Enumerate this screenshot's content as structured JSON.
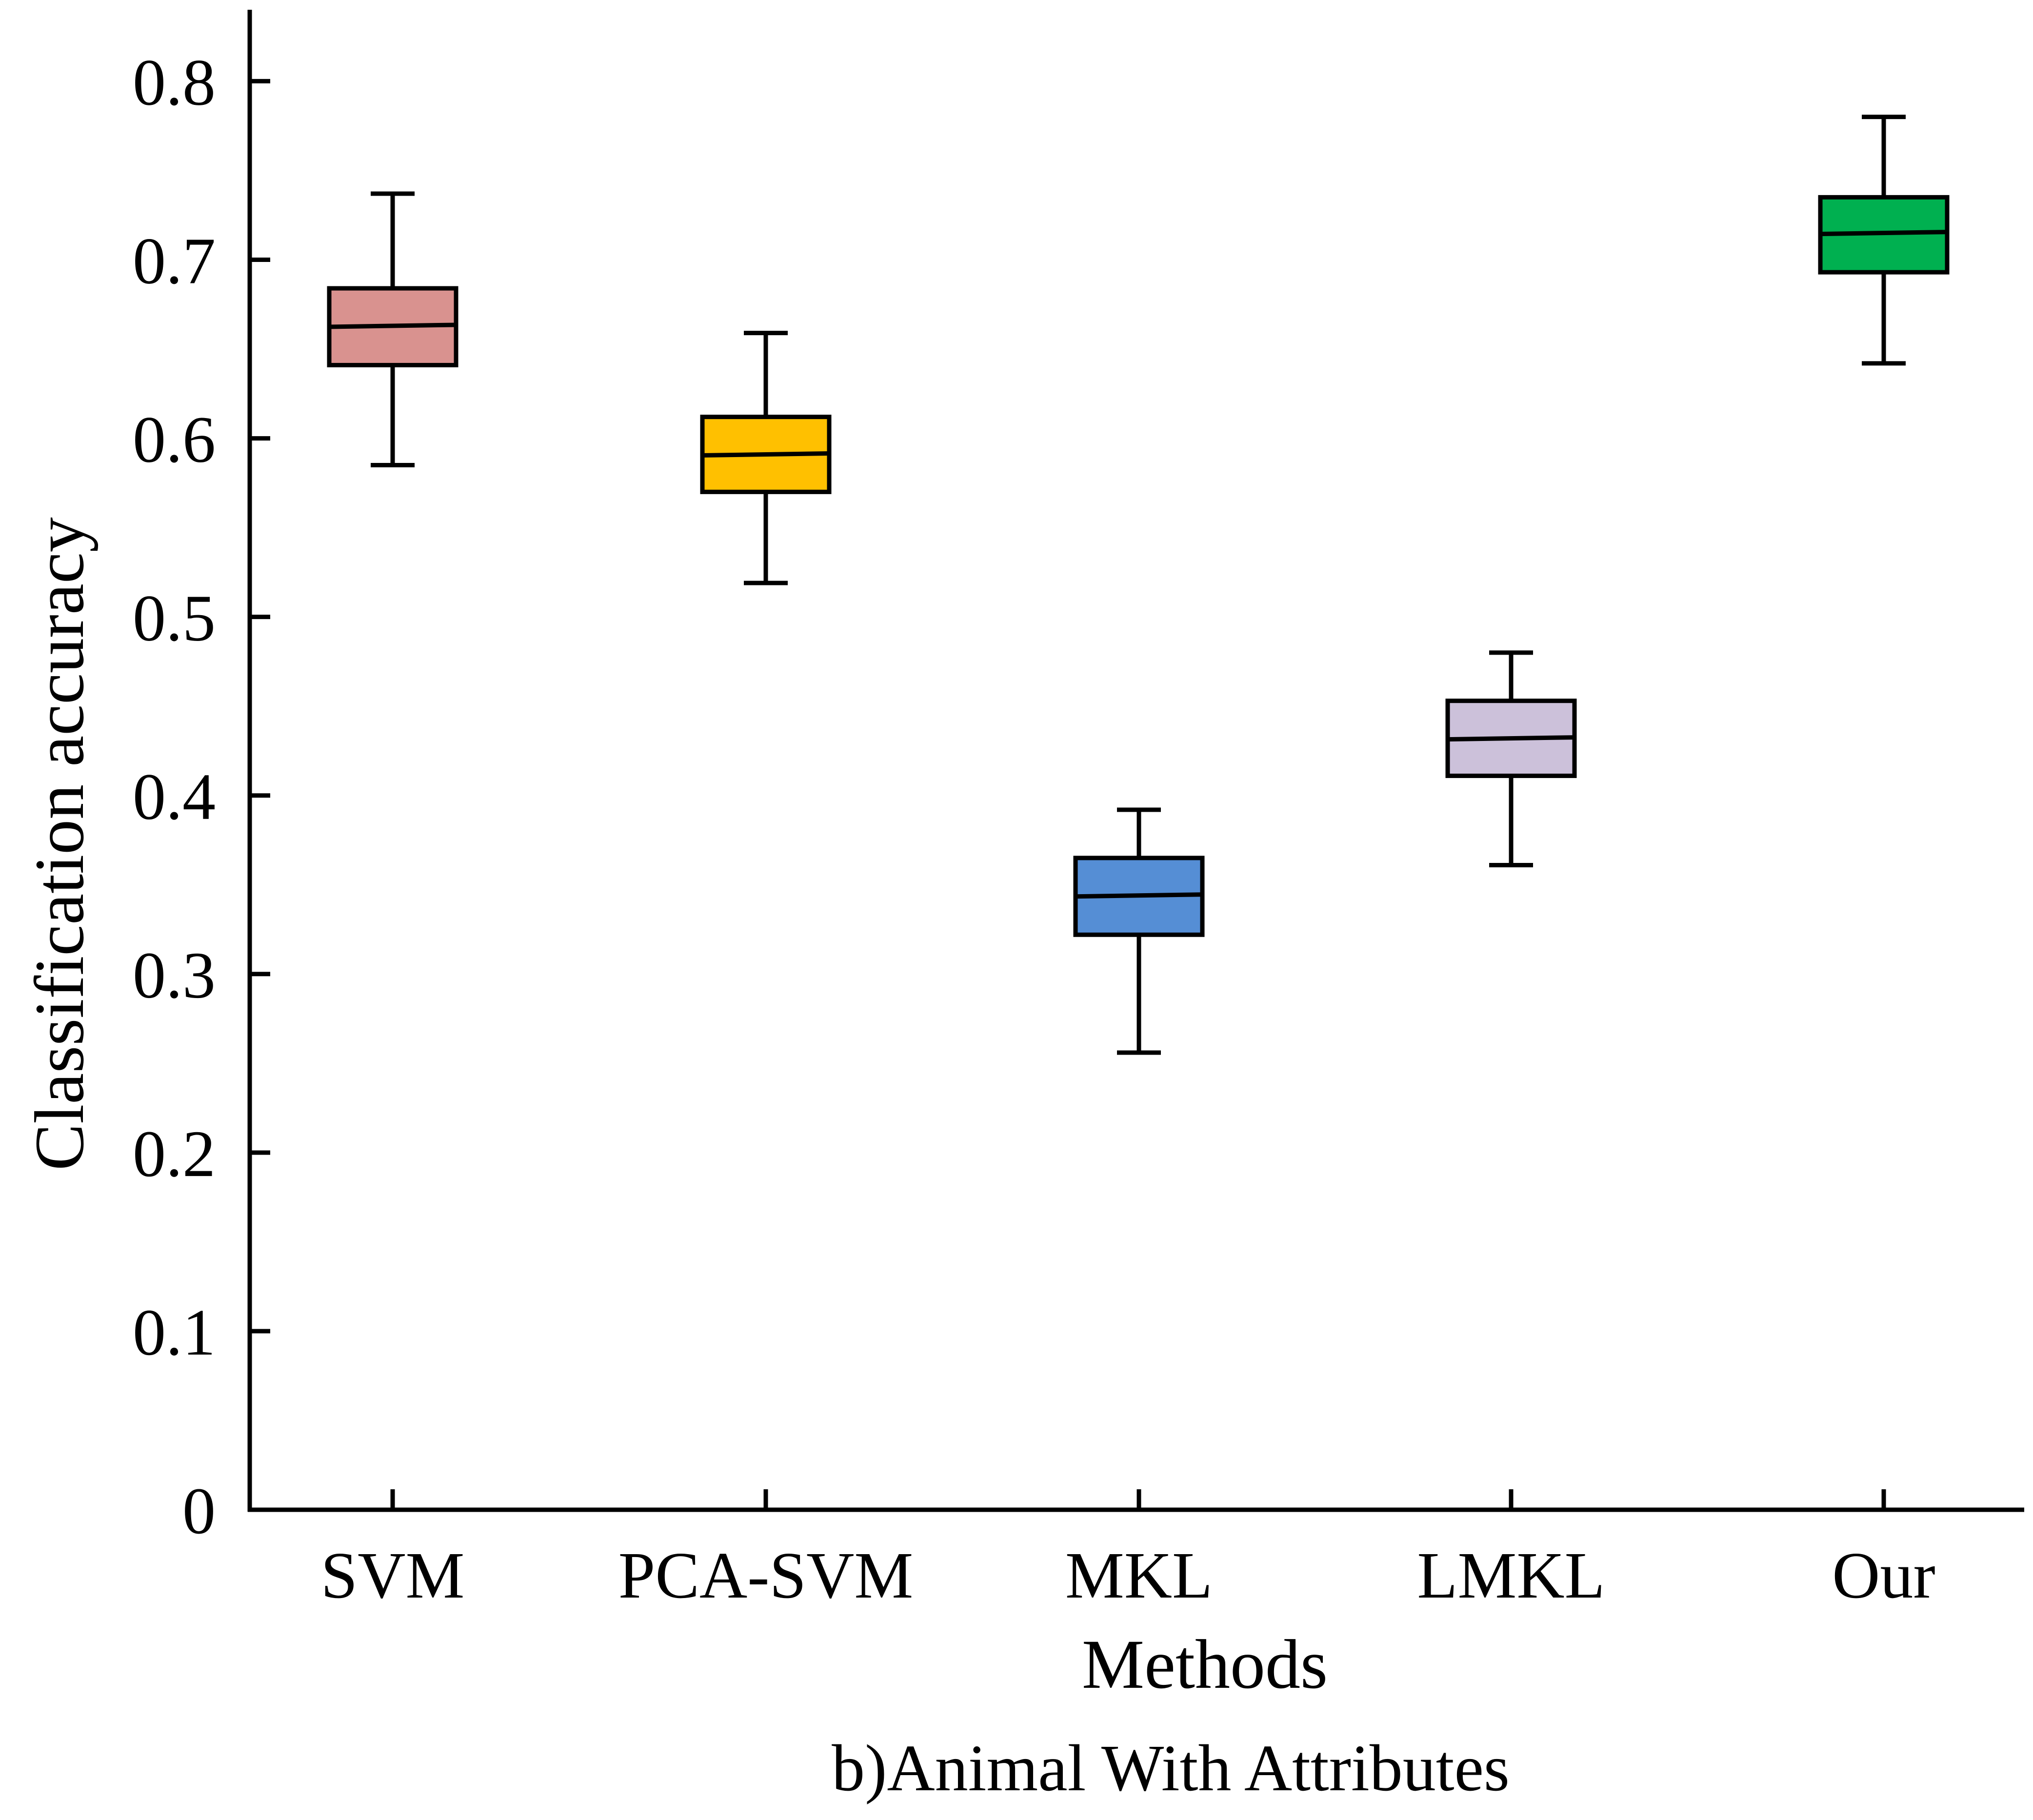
{
  "chart_data": {
    "type": "box",
    "caption": "b)Animal With Attributes",
    "xlabel": "Methods",
    "ylabel": "Classification accuracy",
    "ylim": [
      0,
      0.84
    ],
    "yticks": [
      "0",
      "0.1",
      "0.2",
      "0.3",
      "0.4",
      "0.5",
      "0.6",
      "0.7",
      "0.8"
    ],
    "categories": [
      "SVM",
      "PCA-SVM",
      "MKL",
      "LMKL",
      "Our"
    ],
    "boxes": [
      {
        "category": "SVM",
        "min": 0.585,
        "q1": 0.641,
        "median": 0.663,
        "q3": 0.684,
        "max": 0.737,
        "color": "#d9928f"
      },
      {
        "category": "PCA-SVM",
        "min": 0.519,
        "q1": 0.57,
        "median": 0.591,
        "q3": 0.612,
        "max": 0.659,
        "color": "#ffc000"
      },
      {
        "category": "MKL",
        "min": 0.256,
        "q1": 0.322,
        "median": 0.344,
        "q3": 0.365,
        "max": 0.392,
        "color": "#558ed5"
      },
      {
        "category": "LMKL",
        "min": 0.361,
        "q1": 0.411,
        "median": 0.432,
        "q3": 0.453,
        "max": 0.48,
        "color": "#ccc1da"
      },
      {
        "category": "Our",
        "min": 0.642,
        "q1": 0.693,
        "median": 0.715,
        "q3": 0.735,
        "max": 0.78,
        "color": "#00b050"
      }
    ]
  }
}
